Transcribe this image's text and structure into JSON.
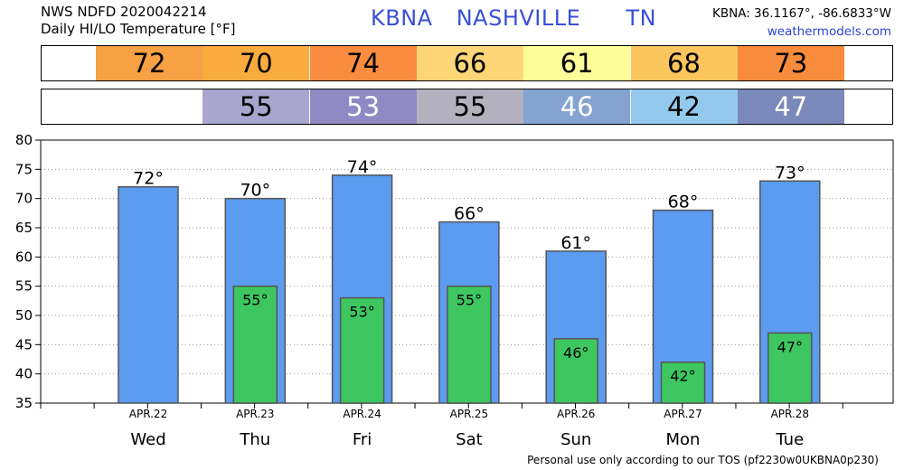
{
  "header": {
    "line1": "NWS NDFD 2020042214",
    "line2": "Daily HI/LO Temperature [°F]",
    "station": "KBNA",
    "city": "NASHVILLE",
    "state": "TN",
    "coords": "KBNA: 36.1167°, -86.6833°W",
    "site": "weathermodels.com"
  },
  "footer": "Personal use only according to our TOS (pf2230w0UKBNA0p230)",
  "colors": {
    "hi_bar": "#5b9cf0",
    "lo_bar": "#3ec661",
    "hi_band": [
      "#f7a044",
      "#f9ab3e",
      "#f98c3e",
      "#fed678",
      "#fefe99",
      "#fbc65e",
      "#f98c3c"
    ],
    "lo_band": [
      null,
      "#a8a6ce",
      "#9089c4",
      "#b2b1bd",
      "#84a3d0",
      "#93c9ec",
      "#7a88ba"
    ]
  },
  "chart_data": {
    "type": "bar",
    "title": "Daily HI/LO Temperature [°F]",
    "categories": [
      "APR.22",
      "APR.23",
      "APR.24",
      "APR.25",
      "APR.26",
      "APR.27",
      "APR.28"
    ],
    "days": [
      "Wed",
      "Thu",
      "Fri",
      "Sat",
      "Sun",
      "Mon",
      "Tue"
    ],
    "series": [
      {
        "name": "HI",
        "values": [
          72,
          70,
          74,
          66,
          61,
          68,
          73
        ]
      },
      {
        "name": "LO",
        "values": [
          null,
          55,
          53,
          55,
          46,
          42,
          47
        ]
      }
    ],
    "ylim": [
      35,
      80
    ],
    "yticks": [
      35,
      40,
      45,
      50,
      55,
      60,
      65,
      70,
      75,
      80
    ],
    "grid": true,
    "value_suffix": "°"
  }
}
